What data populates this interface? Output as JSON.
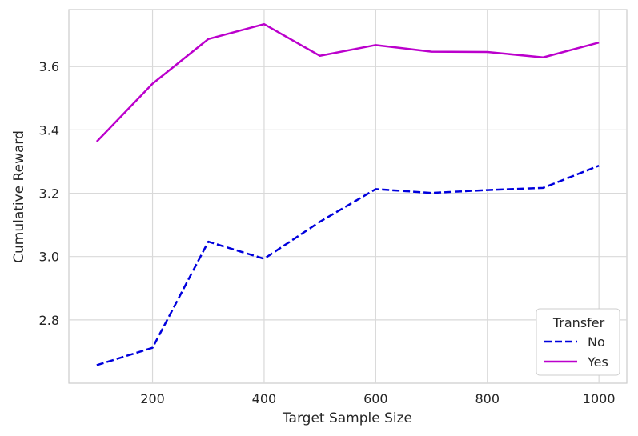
{
  "chart_data": {
    "type": "line",
    "title": "",
    "xlabel": "Target Sample Size",
    "ylabel": "Cumulative Reward",
    "x": [
      100,
      200,
      300,
      400,
      500,
      600,
      700,
      800,
      900,
      1000
    ],
    "xlim": [
      50,
      1050
    ],
    "ylim": [
      2.6,
      3.78
    ],
    "xticks": [
      200,
      400,
      600,
      800,
      1000
    ],
    "xtick_labels": [
      "200",
      "400",
      "600",
      "800",
      "1000"
    ],
    "yticks": [
      2.8,
      3.0,
      3.2,
      3.4,
      3.6
    ],
    "ytick_labels": [
      "2.8",
      "3.0",
      "3.2",
      "3.4",
      "3.6"
    ],
    "grid": true,
    "legend": {
      "title": "Transfer",
      "placement": "bottom-right"
    },
    "series": [
      {
        "name": "No",
        "color": "#0000dd",
        "dashed": true,
        "values": [
          2.657,
          2.712,
          3.047,
          2.993,
          3.11,
          3.213,
          3.201,
          3.21,
          3.217,
          3.287
        ]
      },
      {
        "name": "Yes",
        "color": "#bb00cc",
        "dashed": false,
        "values": [
          3.363,
          3.546,
          3.687,
          3.734,
          3.634,
          3.668,
          3.647,
          3.646,
          3.629,
          3.676
        ]
      }
    ]
  }
}
